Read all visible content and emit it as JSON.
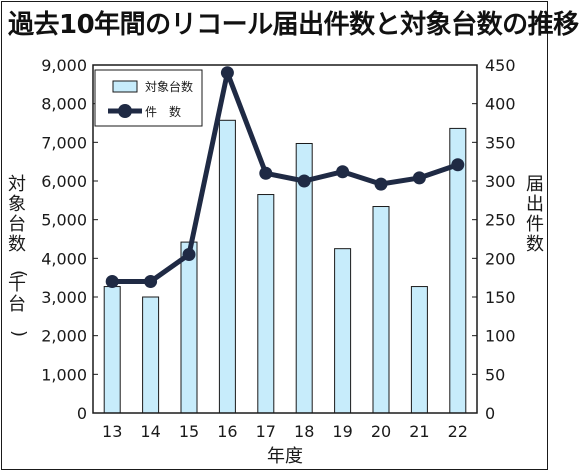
{
  "title": "過去10年間のリコール届出件数と対象台数の推移",
  "colors": {
    "bar_fill": "#c7ecfb",
    "bar_stroke": "#1a1a1a",
    "line": "#1f2a44",
    "axis": "#1a1a1a"
  },
  "chart_data": {
    "type": "bar+line",
    "title": "過去10年間のリコール届出件数と対象台数の推移",
    "xlabel": "年度",
    "ylabel_left": "対象台数(千台)",
    "ylabel_right": "届出件数",
    "categories": [
      "13",
      "14",
      "15",
      "16",
      "17",
      "18",
      "19",
      "20",
      "21",
      "22"
    ],
    "ylim_left": [
      0,
      9000
    ],
    "ylim_right": [
      0,
      450
    ],
    "yticks_left": [
      "0",
      "1,000",
      "2,000",
      "3,000",
      "4,000",
      "5,000",
      "6,000",
      "7,000",
      "8,000",
      "9,000"
    ],
    "yticks_right": [
      "0",
      "50",
      "100",
      "150",
      "200",
      "250",
      "300",
      "350",
      "400",
      "450"
    ],
    "grid": false,
    "legend_position": "top-left",
    "series": [
      {
        "name": "対象台数",
        "type": "bar",
        "axis": "left",
        "values": [
          3270,
          3000,
          4420,
          7570,
          5650,
          6970,
          4250,
          5340,
          3270,
          7360
        ]
      },
      {
        "name": "件　数",
        "type": "line",
        "axis": "right",
        "values": [
          170,
          170,
          205,
          440,
          310,
          300,
          312,
          296,
          304,
          321
        ]
      }
    ]
  }
}
